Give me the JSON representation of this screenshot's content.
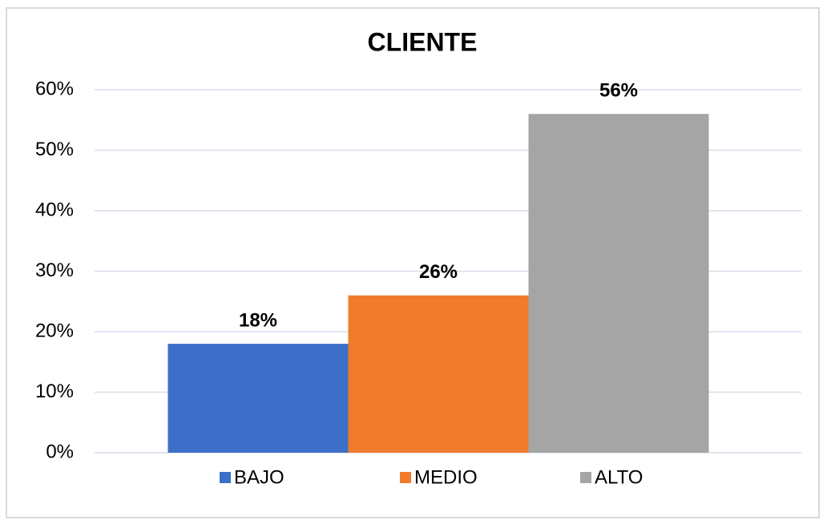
{
  "chart_data": {
    "type": "bar",
    "title": "CLIENTE",
    "categories": [
      null
    ],
    "series": [
      {
        "name": "BAJO",
        "color": "#3d6fc9",
        "values": [
          18
        ],
        "value_labels": [
          "18%"
        ]
      },
      {
        "name": "MEDIO",
        "color": "#ef7b2b",
        "values": [
          26
        ],
        "value_labels": [
          "26%"
        ]
      },
      {
        "name": "ALTO",
        "color": "#a5a5a5",
        "values": [
          56
        ],
        "value_labels": [
          "56%"
        ]
      }
    ],
    "ylim": [
      0,
      60
    ],
    "yticks": [
      {
        "value": 0,
        "label": "0%"
      },
      {
        "value": 10,
        "label": "10%"
      },
      {
        "value": 20,
        "label": "20%"
      },
      {
        "value": 30,
        "label": "30%"
      },
      {
        "value": 40,
        "label": "40%"
      },
      {
        "value": 50,
        "label": "50%"
      },
      {
        "value": 60,
        "label": "60%"
      }
    ],
    "grid": true,
    "legend": "bottom"
  }
}
